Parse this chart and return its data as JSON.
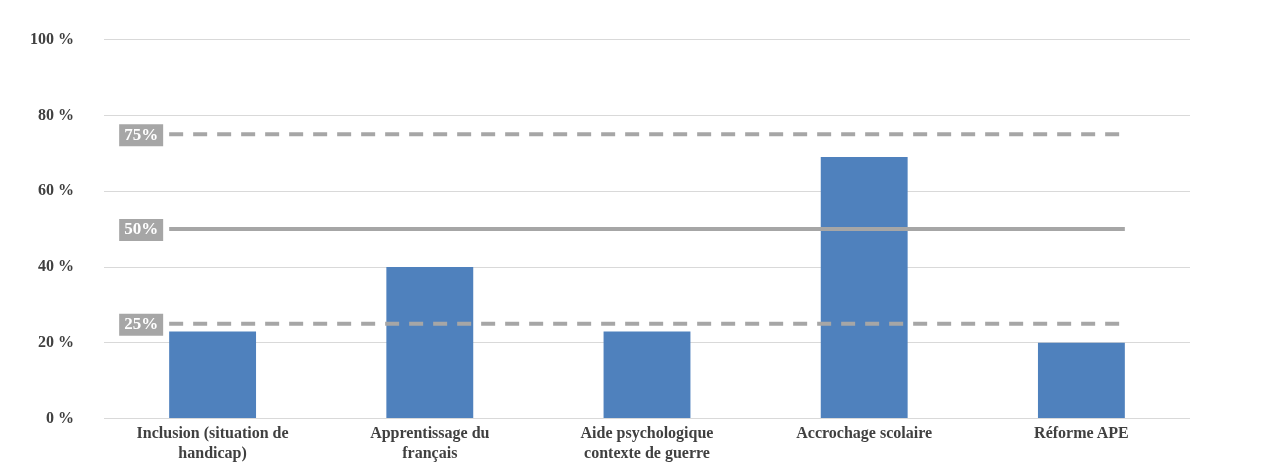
{
  "chart_data": {
    "type": "bar",
    "categories": [
      "Inclusion (situation de handicap)",
      "Apprentissage du français",
      "Aide psychologique contexte de guerre",
      "Accrochage scolaire",
      "Réforme APE"
    ],
    "values": [
      23,
      40,
      23,
      69,
      20
    ],
    "color": "#4f81bd",
    "ylim": [
      0,
      100
    ],
    "yticks": [
      {
        "value": 0,
        "label": "0 %"
      },
      {
        "value": 20,
        "label": "20 %"
      },
      {
        "value": 40,
        "label": "40 %"
      },
      {
        "value": 60,
        "label": "60 %"
      },
      {
        "value": 80,
        "label": "80 %"
      },
      {
        "value": 100,
        "label": "100 %"
      }
    ],
    "grid": "y",
    "legend": false,
    "ref_lines": [
      {
        "axis": "y",
        "value": 75,
        "label": "75%",
        "color": "#a6a6a6",
        "line_style": "dashed"
      },
      {
        "axis": "y",
        "value": 50,
        "label": "50%",
        "color": "#a6a6a6",
        "line_style": "solid"
      },
      {
        "axis": "y",
        "value": 25,
        "label": "25%",
        "color": "#a6a6a6",
        "line_style": "dashed"
      }
    ]
  }
}
